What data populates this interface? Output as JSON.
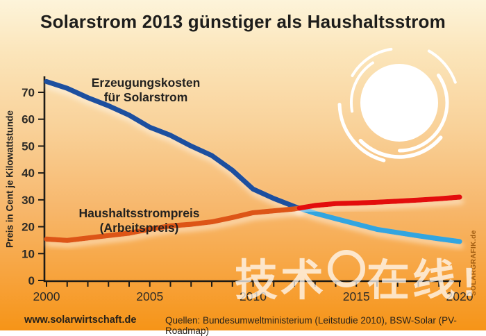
{
  "title": "Solarstrom 2013 günstiger als Haushaltsstrom",
  "labels": {
    "solar_line1": "Erzeugungskosten",
    "solar_line2": "für Solarstrom",
    "household_line1": "Haushaltsstrompreis",
    "household_line2": "(Arbeitspreis)"
  },
  "y_axis_title": "Preis in Cent je Kilowattstunde",
  "footer": {
    "site": "www.solarwirtschaft.de",
    "sources": "Quellen: Bundesumweltministerium (Leitstudie 2010), BSW-Solar (PV-Roadmap)"
  },
  "watermark": {
    "left": "技术",
    "right": "在线",
    "bang": "!"
  },
  "sidemark": "SOLARGRAFIK.de",
  "colors": {
    "axis": "#1d1a15",
    "tick_label": "#2e2b26",
    "solar_before": "#1c4f9f",
    "solar_after": "#31a5e0",
    "household_before": "#dd5413",
    "household_after": "#e30d0d",
    "sun": "#ffffff",
    "background_top": "#fdf4da",
    "background_bottom": "#f69417"
  },
  "chart_data": {
    "type": "line",
    "x": [
      2000,
      2001,
      2002,
      2003,
      2004,
      2005,
      2006,
      2007,
      2008,
      2009,
      2010,
      2011,
      2012,
      2013,
      2014,
      2015,
      2016,
      2017,
      2018,
      2019,
      2020
    ],
    "series": [
      {
        "key": "solar-cost-line",
        "name": "Erzeugungskosten für Solarstrom",
        "values": [
          74,
          71.5,
          68,
          65,
          61.5,
          57,
          54,
          50,
          46.5,
          41,
          34,
          30.5,
          27.5,
          25,
          23,
          21,
          19,
          17.8,
          16.6,
          15.5,
          14.5
        ],
        "color_before": "#1c4f9f",
        "color_after": "#31a5e0",
        "split_year": 2012.24
      },
      {
        "key": "household-price-line",
        "name": "Haushaltsstrompreis (Arbeitspreis)",
        "values": [
          15.4,
          14.9,
          15.8,
          16.7,
          17.6,
          19.1,
          20.3,
          20.9,
          21.8,
          23.4,
          25.2,
          25.9,
          26.6,
          27.9,
          28.6,
          28.8,
          29.1,
          29.5,
          29.9,
          30.4,
          31
        ],
        "color_before": "#dd5413",
        "color_after": "#e30d0d",
        "split_year": 2012.24
      }
    ],
    "crossing": {
      "year": 2012.24,
      "value": 26.9,
      "note": "2013"
    },
    "x_label_ticks": [
      2000,
      2005,
      2010,
      2015,
      2020
    ],
    "x_minor_tick_step": 1,
    "y_ticks": [
      0,
      10,
      20,
      30,
      40,
      50,
      60,
      70
    ],
    "xlim": [
      2000,
      2020
    ],
    "ylim": [
      0,
      78
    ],
    "ylabel": "Preis in Cent je Kilowattstunde",
    "xlabel": "",
    "grid": false,
    "legend_position": "inline-labels"
  }
}
